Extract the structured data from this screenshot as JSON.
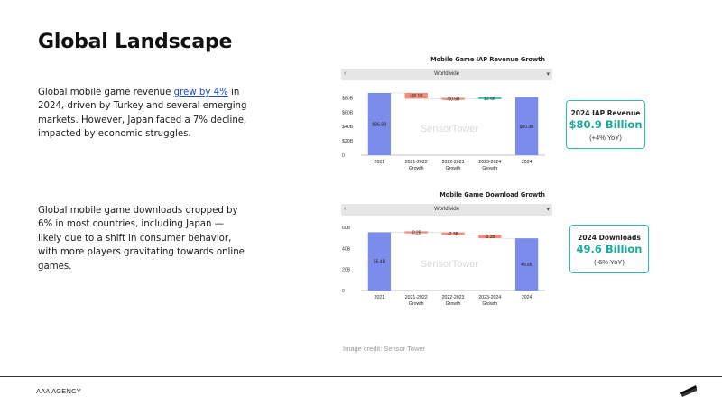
{
  "slide": {
    "title": "Global Landscape",
    "para1": {
      "before": "Global mobile game revenue ",
      "link": "grew by 4%",
      "after": " in 2024, driven by Turkey and several emerging markets. However, Japan faced a 7% decline, impacted by economic struggles."
    },
    "para2": "Global mobile game downloads dropped by 6% in most countries, including Japan — likely due to a shift in consumer behavior, with more players gravitating towards online games."
  },
  "credit": "Image credit: Sensor Tower",
  "footer": {
    "agency": "AAA AGENCY"
  },
  "kpis": [
    {
      "label": "2024 IAP Revenue",
      "value": "$80.9 Billion",
      "change": "(+4% YoY)"
    },
    {
      "label": "2024 Downloads",
      "value": "49.6 Billion",
      "change": "(-6% YoY)"
    }
  ],
  "colors": {
    "accent": "#1aa99a",
    "bar": "#7b8cec",
    "negative": "#f28b78",
    "positive": "#2ec4b0"
  },
  "chart_data": [
    {
      "type": "bar",
      "subtype": "waterfall",
      "title": "Mobile Game IAP Revenue Growth",
      "filter": "Worldwide",
      "watermark": "SensorTower",
      "categories": [
        "2021",
        "2021-2022 Growth",
        "2022-2023 Growth",
        "2023-2024 Growth",
        "2024"
      ],
      "category_lines": [
        [
          "2021"
        ],
        [
          "2021-2022",
          "Growth"
        ],
        [
          "2022-2023",
          "Growth"
        ],
        [
          "2023-2024",
          "Growth"
        ],
        [
          "2024"
        ]
      ],
      "values": [
        86.8,
        -8.1,
        -0.5,
        2.6,
        80.9
      ],
      "value_labels": [
        "$86.8B",
        "-$8.1B",
        "-$0.5B",
        "$2.6B",
        "$80.9B"
      ],
      "kinds": [
        "total",
        "delta",
        "delta",
        "delta",
        "total"
      ],
      "ylim": [
        0,
        80
      ],
      "yticks": [
        0,
        20,
        40,
        60,
        80
      ],
      "ytick_labels": [
        "0",
        "$20B",
        "$40B",
        "$60B",
        "$80B"
      ],
      "ytop_data": 88
    },
    {
      "type": "bar",
      "subtype": "waterfall",
      "title": "Mobile Game Download Growth",
      "filter": "Worldwide",
      "watermark": "SensorTower",
      "categories": [
        "2021",
        "2021-2022 Growth",
        "2022-2023 Growth",
        "2023-2024 Growth",
        "2024"
      ],
      "category_lines": [
        [
          "2021"
        ],
        [
          "2021-2022",
          "Growth"
        ],
        [
          "2022-2023",
          "Growth"
        ],
        [
          "2023-2024",
          "Growth"
        ],
        [
          "2024"
        ]
      ],
      "values": [
        55.4,
        -0.2,
        -2.3,
        -3.3,
        49.6
      ],
      "value_labels": [
        "55.4B",
        "-0.2B",
        "-2.3B",
        "-3.3B",
        "49.6B"
      ],
      "kinds": [
        "total",
        "delta",
        "delta",
        "delta",
        "total"
      ],
      "ylim": [
        0,
        60
      ],
      "yticks": [
        0,
        20,
        40,
        60
      ],
      "ytick_labels": [
        "0",
        "20B",
        "40B",
        "60B"
      ],
      "ytop_data": 60
    }
  ]
}
